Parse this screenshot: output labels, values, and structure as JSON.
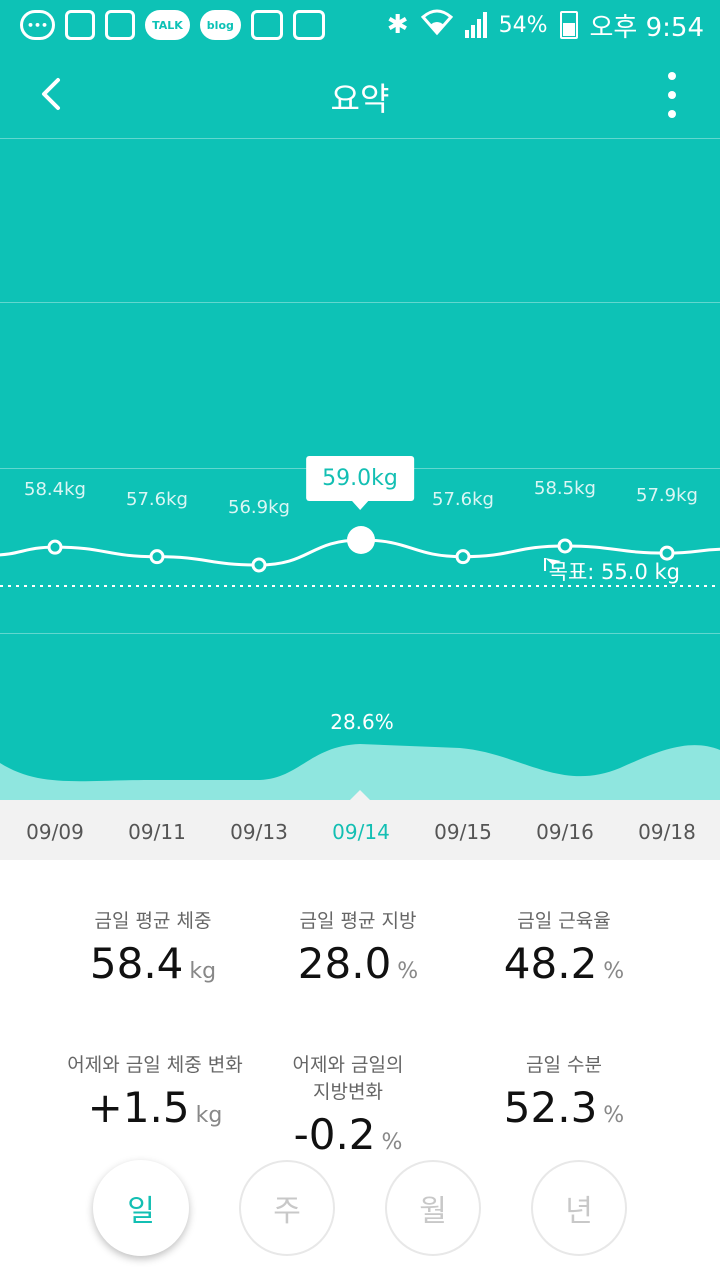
{
  "status_bar": {
    "icons": [
      "more-icon",
      "screen-mirror-icon",
      "gallery-icon",
      "talk-icon",
      "blog-icon",
      "device-icon",
      "device-icon"
    ],
    "talk_label": "TALK",
    "blog_label": "blog",
    "battery": "54%",
    "battery_level": 0.54,
    "time": "오후 9:54"
  },
  "header": {
    "title": "요약"
  },
  "chart_data": {
    "type": "line",
    "categories": [
      "09/09",
      "09/11",
      "09/13",
      "09/14",
      "09/15",
      "09/16",
      "09/18"
    ],
    "series": [
      {
        "values": [
          58.4,
          57.6,
          56.9,
          59.0,
          57.6,
          58.5,
          57.9
        ]
      }
    ],
    "labels": [
      "58.4kg",
      "57.6kg",
      "56.9kg",
      "59.0kg",
      "57.6kg",
      "58.5kg",
      "57.9kg"
    ],
    "selected_index": 3,
    "tooltip": "59.0kg",
    "goal_label": "목표: 55.0 kg",
    "goal_value": 55.0,
    "fat_selected_label": "28.6%",
    "colors": {
      "background": "#0dc2b6",
      "line": "#ffffff",
      "area": "#8fe6df",
      "accent": "#13bfb3"
    }
  },
  "date_axis": {
    "dates": [
      "09/09",
      "09/11",
      "09/13",
      "09/14",
      "09/15",
      "09/16",
      "09/18"
    ],
    "active_index": 3
  },
  "stats": {
    "avg_weight": {
      "label": "금일 평균 체중",
      "value": "58.4",
      "unit": "kg"
    },
    "avg_fat": {
      "label": "금일 평균 지방",
      "value": "28.0",
      "unit": "%"
    },
    "muscle_rate": {
      "label": "금일 근육율",
      "value": "48.2",
      "unit": "%"
    },
    "weight_change": {
      "label": "어제와 금일 체중 변화",
      "value": "+1.5",
      "unit": "kg"
    },
    "fat_change": {
      "label_line1": "어제와 금일의",
      "label_line2": "지방변화",
      "value": "-0.2",
      "unit": "%"
    },
    "water": {
      "label": "금일 수분",
      "value": "52.3",
      "unit": "%"
    }
  },
  "period_buttons": [
    {
      "label": "일",
      "active": true
    },
    {
      "label": "주",
      "active": false
    },
    {
      "label": "월",
      "active": false
    },
    {
      "label": "년",
      "active": false
    }
  ]
}
